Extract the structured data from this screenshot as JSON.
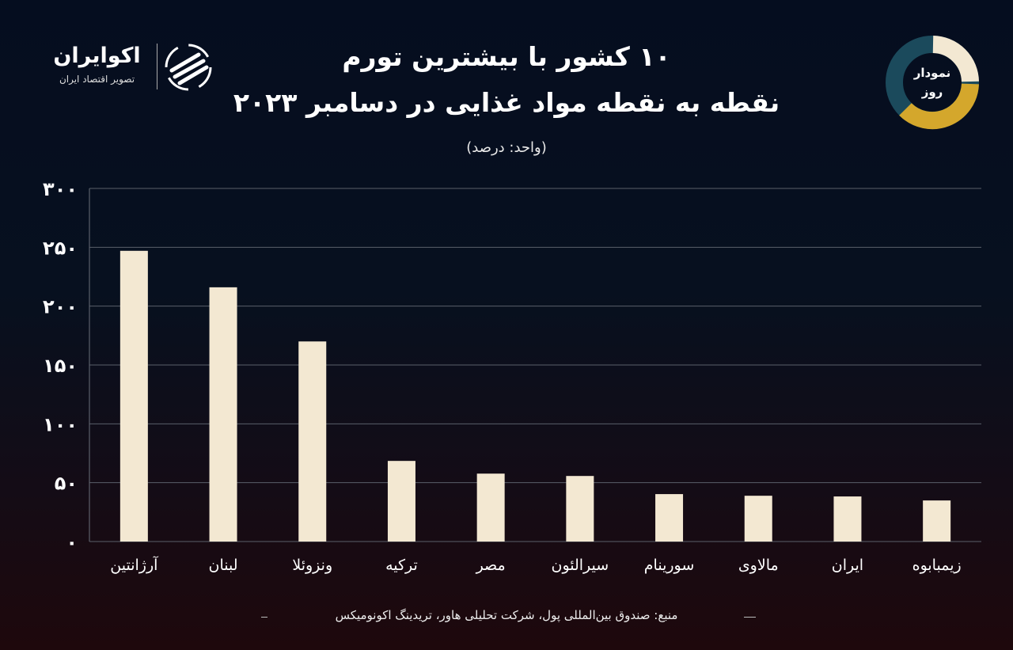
{
  "brand": {
    "name": "اکوایران",
    "tagline": "تصویر اقتصاد ایران"
  },
  "badge": {
    "line1": "نمودار",
    "line2": "روز",
    "colors": [
      "#f3e8d2",
      "#d4a72c",
      "#1b4a5c"
    ]
  },
  "chart_data": {
    "type": "bar",
    "title": "۱۰ کشور با بیشترین تورم",
    "subtitle": "نقطه به نقطه مواد غذایی در دسامبر ۲۰۲۳",
    "unit": "(واحد: درصد)",
    "categories": [
      "آرژانتین",
      "لبنان",
      "ونزوئلا",
      "ترکیه",
      "مصر",
      "سیرالئون",
      "سورینام",
      "مالاوی",
      "ایران",
      "زیمبابوه"
    ],
    "values": [
      247,
      216,
      170,
      68.5,
      57.7,
      55.7,
      40.3,
      38.9,
      38.3,
      34.9
    ],
    "ylim": [
      0,
      300
    ],
    "yticks": [
      0,
      50,
      100,
      150,
      200,
      250,
      300
    ],
    "ytick_labels": [
      "۰",
      "۵۰",
      "۱۰۰",
      "۱۵۰",
      "۲۰۰",
      "۲۵۰",
      "۳۰۰"
    ],
    "grid": true,
    "bar_color": "#f3e8d2"
  },
  "source": "منبع: صندوق بین‌المللی پول، شرکت تحلیلی هاور، تریدینگ اکونومیکس"
}
